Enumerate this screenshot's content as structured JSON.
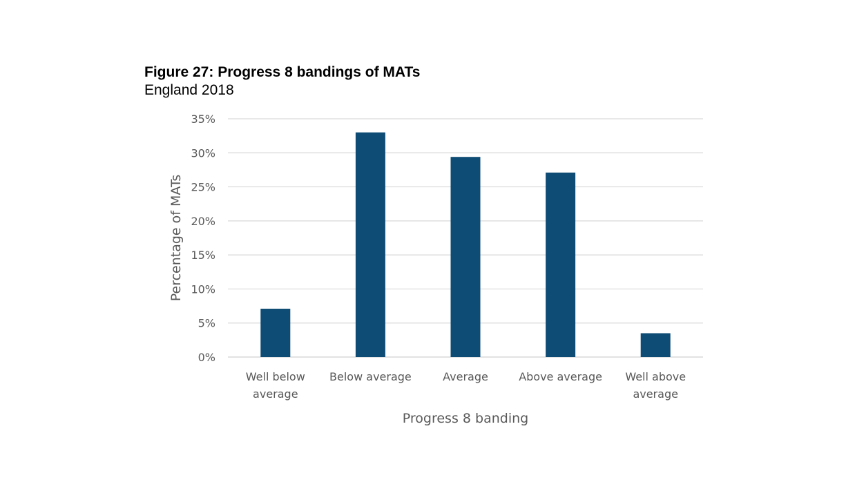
{
  "figure": {
    "title": "Figure 27: Progress 8 bandings of MATs",
    "subtitle": "England 2018"
  },
  "chart_data": {
    "type": "bar",
    "categories": [
      [
        "Well below",
        "average"
      ],
      [
        "Below average"
      ],
      [
        "Average"
      ],
      [
        "Above average"
      ],
      [
        "Well above",
        "average"
      ]
    ],
    "values": [
      7.1,
      33.0,
      29.4,
      27.1,
      3.5
    ],
    "ylabel": "Percentage of MATs",
    "xlabel": "Progress 8 banding",
    "ylim": [
      0,
      35
    ],
    "yticks": [
      "0%",
      "5%",
      "10%",
      "15%",
      "20%",
      "25%",
      "30%",
      "35%"
    ],
    "grid": true,
    "bar_color": "#0f4c75",
    "grid_color": "#d9d9d9",
    "text_color": "#595959"
  }
}
